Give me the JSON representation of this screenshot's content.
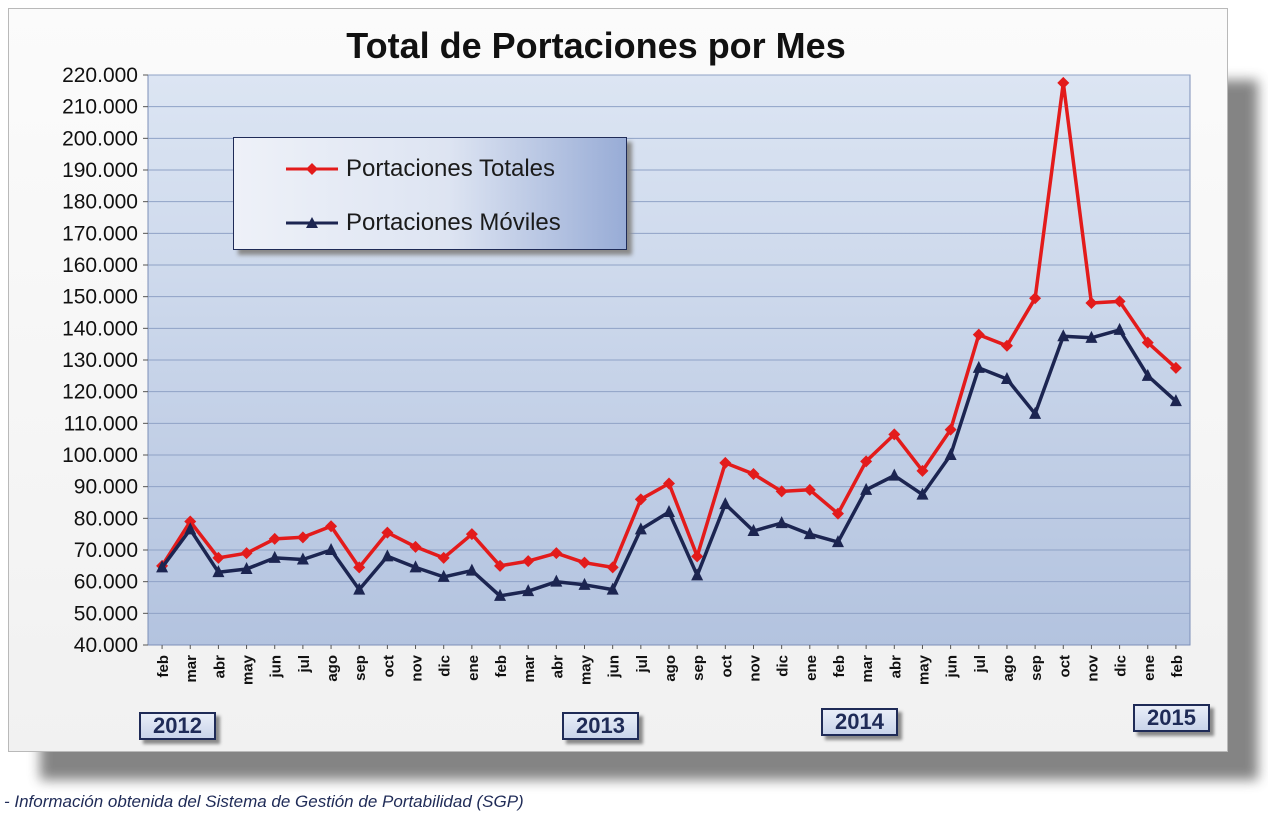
{
  "footnote": "- Información obtenida del Sistema de Gestión de Portabilidad (SGP)",
  "colors": {
    "total": "#e31b1b",
    "mobile": "#1c2551",
    "plot_bg_top": "#dce5f3",
    "plot_bg_bottom": "#b3c3df"
  },
  "chart_data": {
    "type": "line",
    "title": "Total de Portaciones por Mes",
    "xlabel": "",
    "ylabel": "",
    "ylim": [
      40000,
      220000
    ],
    "y_step": 10000,
    "grid": true,
    "legend_position": "top-left",
    "categories": [
      "feb",
      "mar",
      "abr",
      "may",
      "jun",
      "jul",
      "ago",
      "sep",
      "oct",
      "nov",
      "dic",
      "ene",
      "feb",
      "mar",
      "abr",
      "may",
      "jun",
      "jul",
      "ago",
      "sep",
      "oct",
      "nov",
      "dic",
      "ene",
      "feb",
      "mar",
      "abr",
      "may",
      "jun",
      "jul",
      "ago",
      "sep",
      "oct",
      "nov",
      "dic",
      "ene",
      "feb"
    ],
    "y_tick_labels": [
      "40.000",
      "50.000",
      "60.000",
      "70.000",
      "80.000",
      "90.000",
      "100.000",
      "110.000",
      "120.000",
      "130.000",
      "140.000",
      "150.000",
      "160.000",
      "170.000",
      "180.000",
      "190.000",
      "200.000",
      "210.000",
      "220.000"
    ],
    "series": [
      {
        "name": "Portaciones Totales",
        "marker": "diamond",
        "color": "#e31b1b",
        "values": [
          65000,
          79000,
          67500,
          69000,
          73500,
          74000,
          77500,
          64500,
          75500,
          71000,
          67500,
          75000,
          65000,
          66500,
          69000,
          66000,
          64500,
          86000,
          91000,
          68000,
          97500,
          94000,
          88500,
          89000,
          81500,
          98000,
          106500,
          95000,
          108000,
          138000,
          134500,
          149500,
          217500,
          148000,
          148500,
          135500,
          127500
        ]
      },
      {
        "name": "Portaciones Móviles",
        "marker": "triangle",
        "color": "#1c2551",
        "values": [
          64500,
          76500,
          63000,
          64000,
          67500,
          67000,
          70000,
          57500,
          68000,
          64500,
          61500,
          63500,
          55500,
          57000,
          60000,
          59000,
          57500,
          76500,
          82000,
          62000,
          84500,
          76000,
          78500,
          75000,
          72500,
          89000,
          93500,
          87500,
          100000,
          127500,
          124000,
          113000,
          137500,
          137000,
          139500,
          125000,
          117000
        ]
      }
    ],
    "year_labels": [
      {
        "label": "2012",
        "category_index": 0
      },
      {
        "label": "2013",
        "category_index": 15
      },
      {
        "label": "2014",
        "category_index": 24
      },
      {
        "label": "2015",
        "category_index": 36
      }
    ]
  }
}
